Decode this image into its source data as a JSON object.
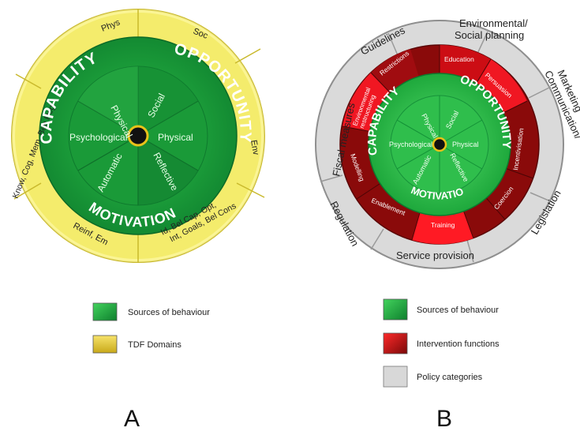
{
  "colors": {
    "green_dark": "#0f7a2e",
    "green_mid": "#1f9c3a",
    "green_light": "#3ecf5a",
    "yellow": "#f3ea4a",
    "yellow_light": "#f7f28a",
    "red_dark": "#7a0a0a",
    "red": "#e0101a",
    "grey": "#d8d8d8",
    "grey_dark": "#8a8a8a",
    "hub": "#111111",
    "hub_ring": "#e8c21a"
  },
  "wheel_a": {
    "outer_labels": [
      "Phys",
      "Soc",
      "Env",
      "Id, Bel Cap, Opt, Int, Goals, Bel Cons",
      "Reinf, Em",
      "Know, Cog, Mem, Beh Reg"
    ],
    "arc_labels": [
      "CAPABILITY",
      "OPPORTUNITY",
      "MOTIVATION"
    ],
    "inner_labels": [
      "Physical",
      "Social",
      "Psychological",
      "Physical",
      "Automatic",
      "Reflective"
    ]
  },
  "wheel_b": {
    "policy_labels": [
      "Guidelines",
      "Environmental/ Social planning",
      "Communication/ Marketing",
      "Legislation",
      "Service provision",
      "Regulation",
      "Fiscal measures"
    ],
    "intervention_labels": [
      "Restrictions",
      "Education",
      "Persuasion",
      "Incentivisation",
      "Coercion",
      "Training",
      "Enablement",
      "Modelling",
      "Environmental restructuring"
    ],
    "arc_labels": [
      "CAPABILITY",
      "OPPORTUNITY",
      "MOTIVATION"
    ],
    "inner_labels": [
      "Physical",
      "Social",
      "Psychological",
      "Physical",
      "Automatic",
      "Reflective"
    ]
  },
  "legend_a": [
    {
      "label": "Sources of behaviour",
      "swatch": "green"
    },
    {
      "label": "TDF Domains",
      "swatch": "yellow"
    }
  ],
  "legend_b": [
    {
      "label": "Sources of behaviour",
      "swatch": "green"
    },
    {
      "label": "Intervention functions",
      "swatch": "red"
    },
    {
      "label": "Policy categories",
      "swatch": "grey"
    }
  ],
  "panel_labels": {
    "a": "A",
    "b": "B"
  }
}
